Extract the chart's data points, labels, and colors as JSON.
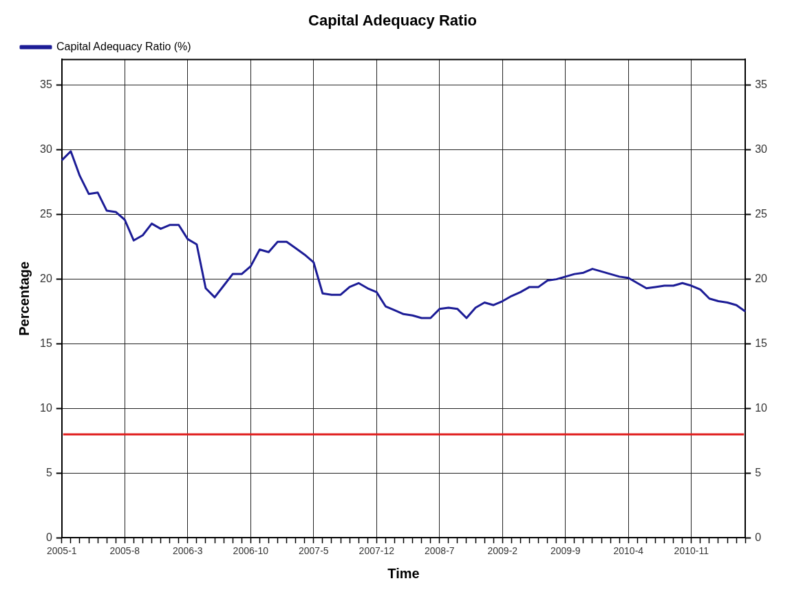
{
  "chart_data": {
    "type": "line",
    "title": "Capital Adequacy Ratio",
    "xlabel": "Time",
    "ylabel": "Percentage",
    "categories": [
      "2005-1",
      null,
      null,
      null,
      null,
      null,
      null,
      "2005-8",
      null,
      null,
      null,
      null,
      null,
      null,
      "2006-3",
      null,
      null,
      null,
      null,
      null,
      null,
      "2006-10",
      null,
      null,
      null,
      null,
      null,
      null,
      "2007-5",
      null,
      null,
      null,
      null,
      null,
      null,
      "2007-12",
      null,
      null,
      null,
      null,
      null,
      null,
      "2008-7",
      null,
      null,
      null,
      null,
      null,
      null,
      "2009-2",
      null,
      null,
      null,
      null,
      null,
      null,
      "2009-9",
      null,
      null,
      null,
      null,
      null,
      null,
      "2010-4",
      null,
      null,
      null,
      null,
      null,
      null,
      "2010-11",
      null,
      null,
      null,
      null,
      null,
      null
    ],
    "series": [
      {
        "name": "Capital Adequacy Ratio (%)",
        "color": "#1c1c96",
        "values": [
          29.2,
          29.9,
          28.0,
          26.6,
          26.7,
          25.3,
          25.2,
          24.6,
          23.0,
          23.4,
          24.3,
          23.9,
          24.2,
          24.2,
          23.1,
          22.7,
          19.3,
          18.6,
          19.5,
          20.4,
          20.4,
          21.0,
          22.3,
          22.1,
          22.9,
          22.9,
          22.4,
          21.9,
          21.3,
          18.9,
          18.8,
          18.8,
          19.4,
          19.7,
          19.3,
          19.0,
          17.9,
          17.6,
          17.3,
          17.2,
          17.0,
          17.0,
          17.7,
          17.8,
          17.7,
          17.0,
          17.8,
          18.2,
          18.0,
          18.3,
          18.7,
          19.0,
          19.4,
          19.4,
          19.9,
          20.0,
          20.2,
          20.4,
          20.5,
          20.8,
          20.6,
          20.4,
          20.2,
          20.1,
          19.7,
          19.3,
          19.4,
          19.5,
          19.5,
          19.7,
          19.5,
          19.2,
          18.5,
          18.3,
          18.2,
          18.0,
          17.5
        ]
      }
    ],
    "ylim": [
      0,
      37
    ],
    "yticks": [
      0,
      5,
      10,
      15,
      20,
      25,
      30,
      35
    ],
    "y2lim": [
      0,
      37
    ],
    "y2ticks": [
      0,
      5,
      10,
      15,
      20,
      25,
      30,
      35
    ],
    "ref_lines": [
      {
        "axis": "y",
        "value": 8,
        "color": "#e01c1c",
        "line_style": "solid"
      }
    ],
    "grid": true,
    "legend": "top left",
    "marker": "none",
    "line_style": "solid"
  }
}
